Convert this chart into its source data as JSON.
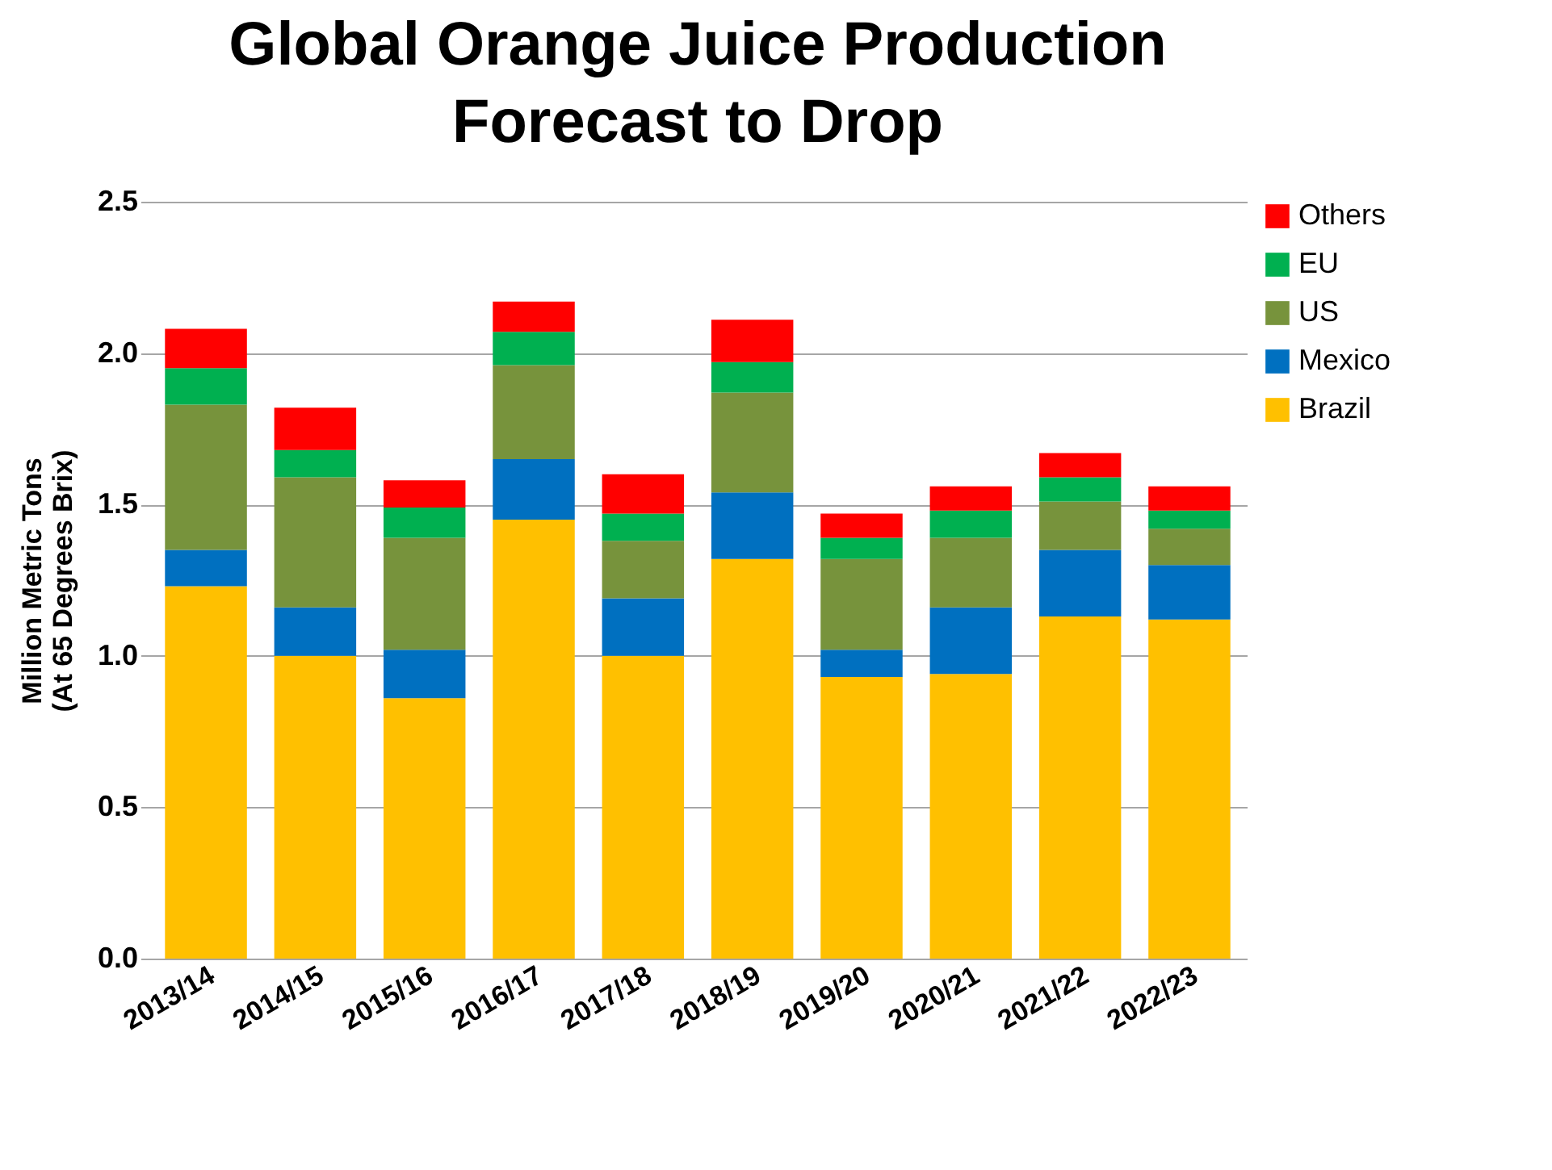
{
  "chart_data": {
    "type": "bar",
    "title": "Global Orange Juice Production\nForecast to Drop",
    "ylabel": "Million Metric Tons\n(At 65 Degrees Brix)",
    "categories": [
      "2013/14",
      "2014/15",
      "2015/16",
      "2016/17",
      "2017/18",
      "2018/19",
      "2019/20",
      "2020/21",
      "2021/22",
      "2022/23"
    ],
    "stacked": true,
    "series": [
      {
        "name": "Brazil",
        "color": "#ffc000",
        "values": [
          1.23,
          1.0,
          0.86,
          1.45,
          1.0,
          1.32,
          0.93,
          0.94,
          1.13,
          1.12
        ]
      },
      {
        "name": "Mexico",
        "color": "#0070c0",
        "values": [
          0.12,
          0.16,
          0.16,
          0.2,
          0.19,
          0.22,
          0.09,
          0.22,
          0.22,
          0.18
        ]
      },
      {
        "name": "US",
        "color": "#77933c",
        "values": [
          0.48,
          0.43,
          0.37,
          0.31,
          0.19,
          0.33,
          0.3,
          0.23,
          0.16,
          0.12
        ]
      },
      {
        "name": "EU",
        "color": "#00b050",
        "values": [
          0.12,
          0.09,
          0.1,
          0.11,
          0.09,
          0.1,
          0.07,
          0.09,
          0.08,
          0.06
        ]
      },
      {
        "name": "Others",
        "color": "#ff0000",
        "values": [
          0.13,
          0.14,
          0.09,
          0.1,
          0.13,
          0.14,
          0.08,
          0.08,
          0.08,
          0.08
        ]
      }
    ],
    "ylim": [
      0,
      2.5
    ],
    "yticks": [
      {
        "value": 0,
        "label": "0.0"
      },
      {
        "value": 0.5,
        "label": "0.5"
      },
      {
        "value": 1,
        "label": "1.0"
      },
      {
        "value": 1.5,
        "label": "1.5"
      },
      {
        "value": 2,
        "label": "2.0"
      },
      {
        "value": 2.5,
        "label": "2.5"
      }
    ],
    "grid": "y",
    "legend": "right"
  }
}
